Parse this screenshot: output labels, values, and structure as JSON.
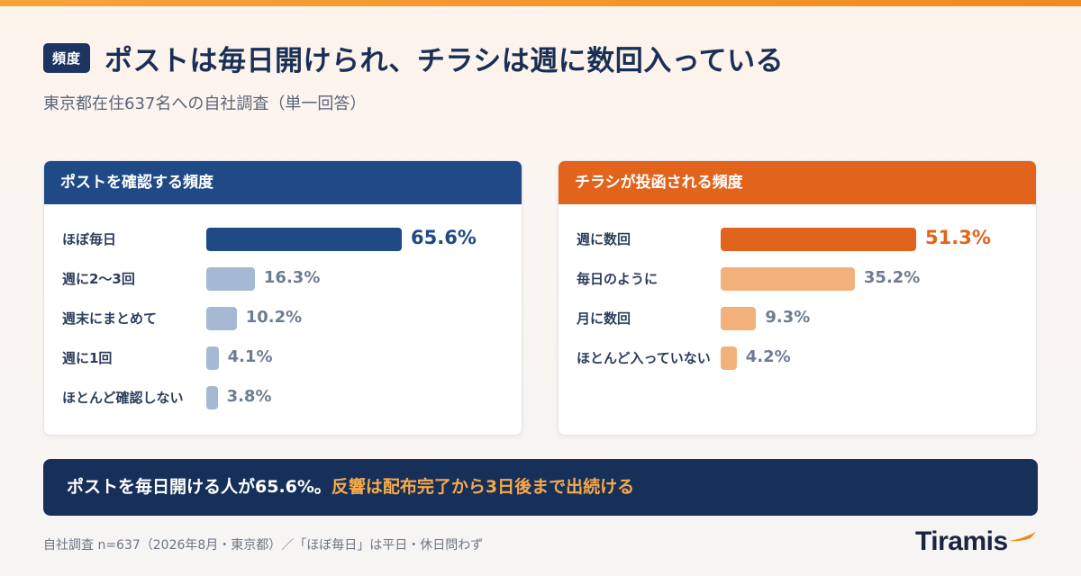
{
  "header": {
    "tag": "頻度",
    "title": "ポストは毎日開けられ、チラシは週に数回入っている",
    "subtitle": "東京都在住637名への自社調査（単一回答）"
  },
  "chart_data": [
    {
      "type": "bar",
      "orientation": "horizontal",
      "title": "ポストを確認する頻度",
      "categories": [
        "ほぼ毎日",
        "週に2〜3回",
        "週末にまとめて",
        "週に1回",
        "ほとんど確認しない"
      ],
      "values": [
        65.6,
        16.3,
        10.2,
        4.1,
        3.8
      ],
      "value_labels": [
        "65.6%",
        "16.3%",
        "10.2%",
        "4.1%",
        "3.8%"
      ],
      "highlight_index": 0,
      "xlim": [
        0,
        65.6
      ],
      "colors": {
        "highlight": "#1f4a86",
        "normal": "#a6b9d4",
        "highlight_text": "#1f4a86",
        "normal_text": "#6e7c92"
      }
    },
    {
      "type": "bar",
      "orientation": "horizontal",
      "title": "チラシが投函される頻度",
      "categories": [
        "週に数回",
        "毎日のように",
        "月に数回",
        "ほとんど入っていない"
      ],
      "values": [
        51.3,
        35.2,
        9.3,
        4.2
      ],
      "value_labels": [
        "51.3%",
        "35.2%",
        "9.3%",
        "4.2%"
      ],
      "highlight_index": 0,
      "xlim": [
        0,
        51.3
      ],
      "colors": {
        "highlight": "#e2631b",
        "normal": "#f2b07a",
        "highlight_text": "#e2631b",
        "normal_text": "#6e7c92"
      }
    }
  ],
  "banner": {
    "text_main": "ポストを毎日開ける人が65.6%。",
    "text_highlight": "反響は配布完了から3日後まで出続ける"
  },
  "footnote": "自社調査 n=637（2026年8月・東京都）／「ほぼ毎日」は平日・休日問わず",
  "logo": {
    "text": "Tiramis"
  }
}
